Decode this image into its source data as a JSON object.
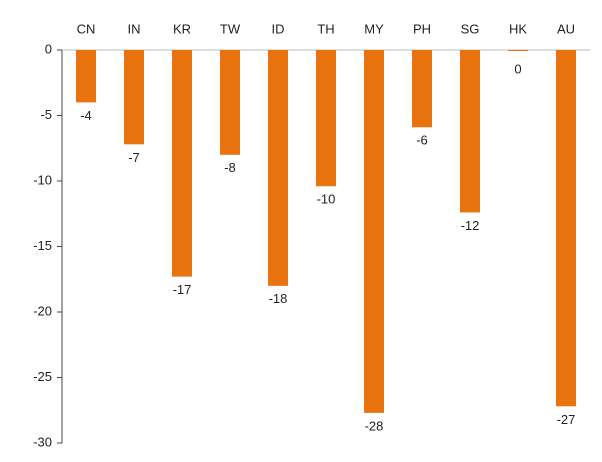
{
  "chart_data": {
    "type": "bar",
    "categories": [
      "CN",
      "IN",
      "KR",
      "TW",
      "ID",
      "TH",
      "MY",
      "PH",
      "SG",
      "HK",
      "AU"
    ],
    "values": [
      -4,
      -7.2,
      -17.3,
      -8,
      -18,
      -10.4,
      -27.7,
      -5.9,
      -12.4,
      0,
      -27.2
    ],
    "value_labels": [
      "-4",
      "-7",
      "-17",
      "-8",
      "-18",
      "-10",
      "-28",
      "-6",
      "-12",
      "0",
      "-27"
    ],
    "color": "#e8730f",
    "ylim": [
      -30,
      0
    ],
    "yticks": [
      0,
      -5,
      -10,
      -15,
      -20,
      -25,
      -30
    ]
  }
}
